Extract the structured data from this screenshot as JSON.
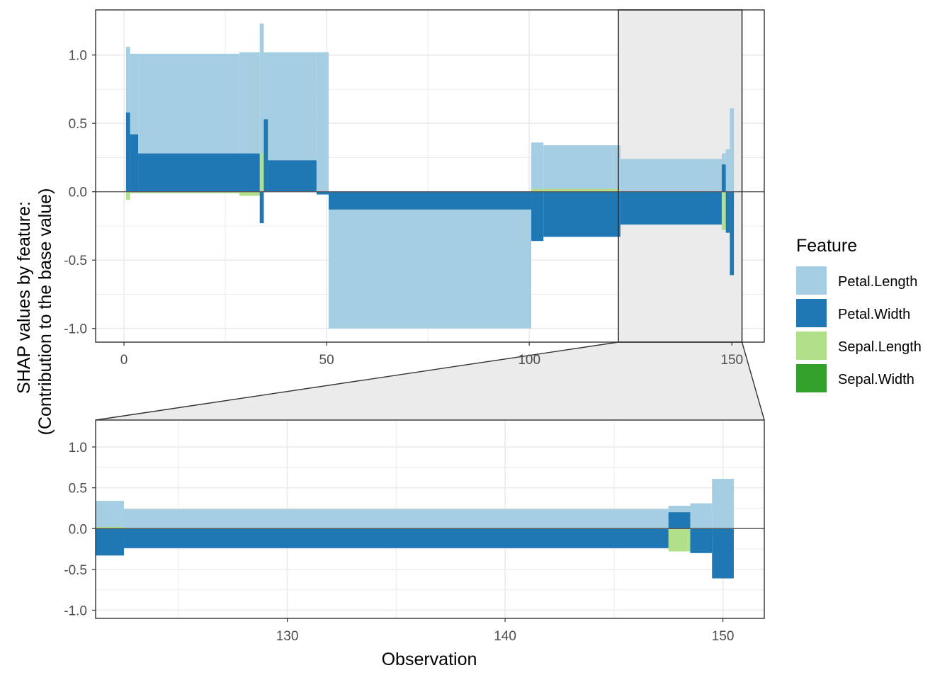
{
  "chart_data": {
    "type": "bar",
    "subtype": "stacked SHAP force plot with zoom panel",
    "ylabel_line1": "SHAP values by feature:",
    "ylabel_line2": "(Contribution to the base value)",
    "xlabel": "Observation",
    "legend_title": "Feature",
    "legend_position": "right",
    "grid": true,
    "features": [
      {
        "name": "Petal.Length",
        "color": "#a6cee3"
      },
      {
        "name": "Petal.Width",
        "color": "#1f78b4"
      },
      {
        "name": "Sepal.Length",
        "color": "#b2df8a"
      },
      {
        "name": "Sepal.Width",
        "color": "#33a02c"
      }
    ],
    "main_panel": {
      "xlim": [
        -7,
        158
      ],
      "ylim": [
        -1.1,
        1.33
      ],
      "x_ticks": [
        0,
        50,
        100,
        150
      ],
      "y_ticks": [
        -1.0,
        -0.5,
        0.0,
        0.5,
        1.0
      ],
      "y_tick_labels": [
        "-1.0",
        "-0.5",
        "0.0",
        "0.5",
        "1.0"
      ],
      "zoom_range": [
        122,
        152.5
      ]
    },
    "zoom_panel": {
      "xlim": [
        121.2,
        151.9
      ],
      "ylim": [
        -1.1,
        1.33
      ],
      "x_ticks": [
        130,
        140,
        150
      ],
      "y_ticks": [
        -1.0,
        -0.5,
        0.0,
        0.5,
        1.0
      ],
      "y_tick_labels": [
        "-1.0",
        "-0.5",
        "0.0",
        "0.5",
        "1.0"
      ]
    },
    "series": [
      {
        "name": "Petal.Length",
        "segments": [
          [
            1,
            1,
            1.06
          ],
          [
            2,
            3,
            1.01
          ],
          [
            4,
            28,
            1.01
          ],
          [
            29,
            33,
            1.02
          ],
          [
            34,
            34,
            1.23
          ],
          [
            35,
            47,
            1.02
          ],
          [
            48,
            50,
            1.02
          ],
          [
            51,
            100,
            -1.0
          ],
          [
            101,
            103,
            0.36
          ],
          [
            104,
            120,
            0.34
          ],
          [
            121,
            122,
            0.34
          ],
          [
            123,
            147,
            0.24
          ],
          [
            148,
            148,
            0.28
          ],
          [
            149,
            149,
            0.31
          ],
          [
            150,
            150,
            0.61
          ]
        ]
      },
      {
        "name": "Petal.Width",
        "segments": [
          [
            1,
            1,
            0.58
          ],
          [
            2,
            3,
            0.42
          ],
          [
            4,
            33,
            0.28
          ],
          [
            34,
            34,
            -0.23
          ],
          [
            35,
            35,
            0.53
          ],
          [
            36,
            47,
            0.23
          ],
          [
            48,
            50,
            -0.02
          ],
          [
            51,
            100,
            -0.13
          ],
          [
            101,
            103,
            -0.36
          ],
          [
            104,
            122,
            -0.33
          ],
          [
            123,
            147,
            -0.24
          ],
          [
            148,
            148,
            0.2
          ],
          [
            149,
            149,
            -0.3
          ],
          [
            150,
            150,
            -0.61
          ]
        ]
      },
      {
        "name": "Sepal.Length",
        "segments": [
          [
            1,
            1,
            -0.06
          ],
          [
            2,
            28,
            -0.01
          ],
          [
            29,
            33,
            -0.03
          ],
          [
            34,
            35,
            0.28
          ],
          [
            36,
            47,
            0.04
          ],
          [
            48,
            50,
            0.0
          ],
          [
            51,
            100,
            0.0
          ],
          [
            101,
            122,
            0.02
          ],
          [
            123,
            147,
            -0.05
          ],
          [
            148,
            148,
            -0.28
          ],
          [
            149,
            150,
            -0.14
          ]
        ]
      },
      {
        "name": "Sepal.Width",
        "segments": [
          [
            1,
            150,
            0.0
          ]
        ]
      }
    ]
  }
}
